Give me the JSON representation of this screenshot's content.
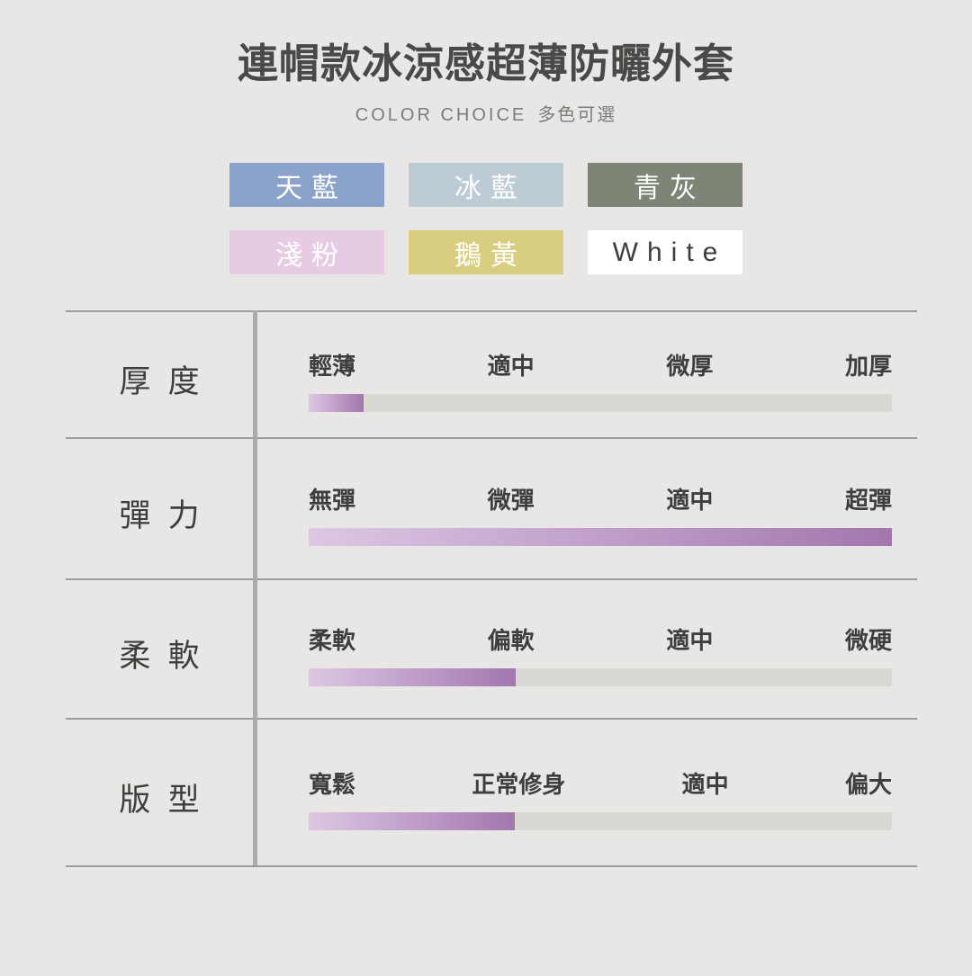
{
  "header": {
    "title": "連帽款冰涼感超薄防曬外套",
    "subtitle_en": "COLOR CHOICE",
    "subtitle_zh": "多色可選"
  },
  "swatches": [
    {
      "label": "天藍",
      "bg": "#8ba3ca",
      "text": "#ffffff"
    },
    {
      "label": "冰藍",
      "bg": "#bccbd4",
      "text": "#ffffff"
    },
    {
      "label": "青灰",
      "bg": "#7f8576",
      "text": "#ffffff"
    },
    {
      "label": "淺粉",
      "bg": "#e6cbe2",
      "text": "#ffffff"
    },
    {
      "label": "鵝黃",
      "bg": "#d9cd80",
      "text": "#ffffff"
    },
    {
      "label": "White",
      "bg": "#ffffff",
      "text": "#3d3d3b"
    }
  ],
  "colors": {
    "page_bg": "#e8e7e5",
    "bar_track": "#d8d9d3",
    "bar_fill_start": "#ddc7e4",
    "bar_fill_end": "#a277ae",
    "row_line": "#9b9b99",
    "divider": "#ababa9",
    "title_text": "#4a4947",
    "label_text": "#3e3e3c"
  },
  "chart_data": {
    "type": "bar",
    "title": "連帽款冰涼感超薄防曬外套",
    "note": "horizontal rating bars, fill_percent = portion of track filled with purple gradient",
    "rows": [
      {
        "name": "厚度",
        "scale": [
          "輕薄",
          "適中",
          "微厚",
          "加厚"
        ],
        "fill_percent": 9.4
      },
      {
        "name": "彈力",
        "scale": [
          "無彈",
          "微彈",
          "適中",
          "超彈"
        ],
        "fill_percent": 100
      },
      {
        "name": "柔軟",
        "scale": [
          "柔軟",
          "偏軟",
          "適中",
          "微硬"
        ],
        "fill_percent": 35.5
      },
      {
        "name": "版型",
        "scale": [
          "寬鬆",
          "正常修身",
          "適中",
          "偏大"
        ],
        "fill_percent": 35.3
      }
    ]
  }
}
